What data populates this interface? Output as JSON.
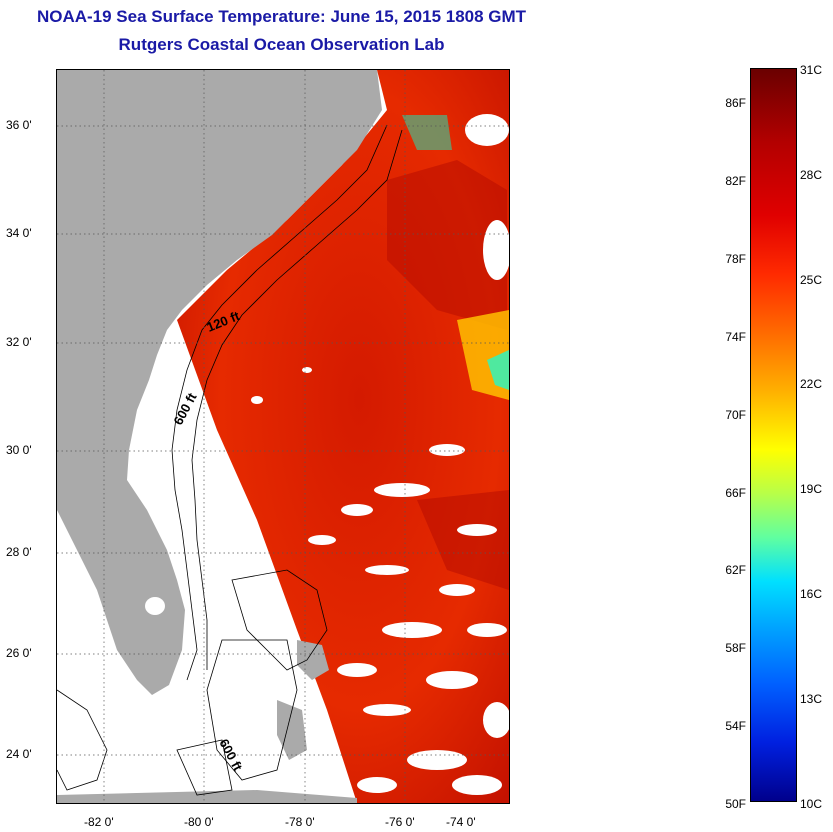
{
  "title_line1": "NOAA-19 Sea Surface Temperature:  June 15, 2015 1808 GMT",
  "title_line2": "Rutgers Coastal Ocean Observation Lab",
  "lat_labels": [
    "36 0'",
    "34 0'",
    "32 0'",
    "30 0'",
    "28 0'",
    "26 0'",
    "24 0'"
  ],
  "lon_labels": [
    "-82 0'",
    "-80 0'",
    "-78 0'",
    "-76 0'",
    "-74 0'"
  ],
  "contour_labels": [
    "120 ft",
    "600 ft",
    "600 ft"
  ],
  "colorbar": {
    "fahrenheit_labels": [
      "86F",
      "82F",
      "78F",
      "74F",
      "70F",
      "66F",
      "62F",
      "58F",
      "54F",
      "50F"
    ],
    "celsius_labels": [
      "31C",
      "28C",
      "25C",
      "22C",
      "19C",
      "16C",
      "13C",
      "10C"
    ],
    "range_f": [
      50,
      88
    ],
    "range_c": [
      10,
      31
    ]
  },
  "colors": {
    "title": "#1a1aa6",
    "land": "#aaaaaa",
    "no_data": "#ffffff",
    "sst_dominant": "#e01e00"
  }
}
